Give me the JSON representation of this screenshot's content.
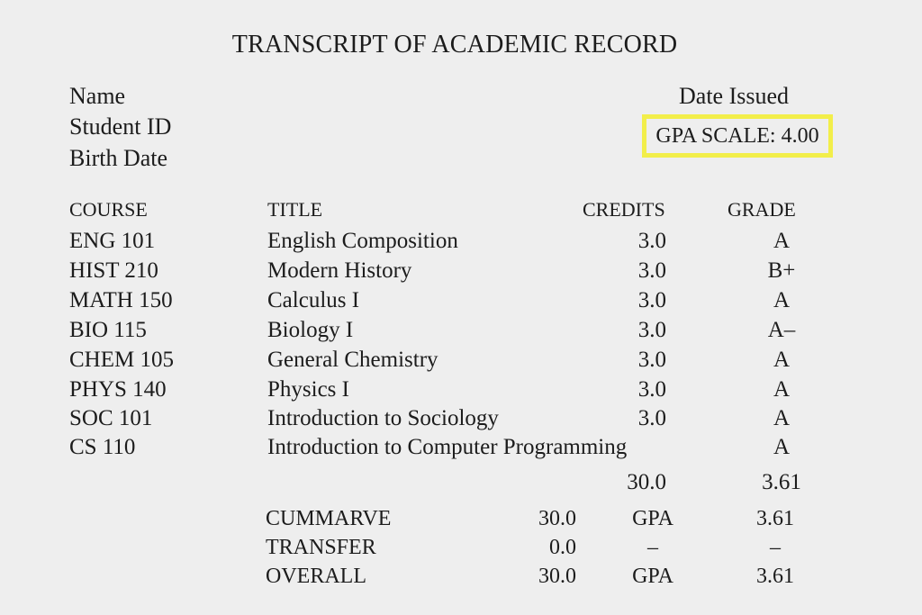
{
  "document": {
    "title": "TRANSCRIPT OF ACADEMIC RECORD",
    "info_left": [
      "Name",
      "Student ID",
      "Birth Date"
    ],
    "date_issued": "Date Issued",
    "gpa_scale_label": "GPA SCALE:",
    "gpa_scale_value": "4.00"
  },
  "table": {
    "headers": {
      "course": "COURSE",
      "title": "TITLE",
      "credits": "CREDITS",
      "grade": "GRADE"
    },
    "rows": [
      {
        "course": "ENG 101",
        "title": "English Composition",
        "credits": "3.0",
        "grade": "A"
      },
      {
        "course": "HIST 210",
        "title": "Modern History",
        "credits": "3.0",
        "grade": "B+"
      },
      {
        "course": "MATH 150",
        "title": "Calculus I",
        "credits": "3.0",
        "grade": "A"
      },
      {
        "course": "BIO 115",
        "title": "Biology I",
        "credits": "3.0",
        "grade": "A–"
      },
      {
        "course": "CHEM 105",
        "title": "General Chemistry",
        "credits": "3.0",
        "grade": "A"
      },
      {
        "course": "PHYS 140",
        "title": "Physics I",
        "credits": "3.0",
        "grade": "A"
      },
      {
        "course": "SOC 101",
        "title": "Introduction to Sociology",
        "credits": "3.0",
        "grade": "A"
      },
      {
        "course": "CS 110",
        "title": "Introduction to Computer Programming",
        "credits": "",
        "grade": "A"
      }
    ],
    "total_credits": "30.0",
    "total_gpa": "3.61"
  },
  "summary": [
    {
      "label": "CUMMARVE",
      "credits": "30.0",
      "type": "GPA",
      "value": "3.61"
    },
    {
      "label": "TRANSFER",
      "credits": "0.0",
      "type": "–",
      "value": "–"
    },
    {
      "label": "OVERALL",
      "credits": "30.0",
      "type": "GPA",
      "value": "3.61"
    }
  ]
}
